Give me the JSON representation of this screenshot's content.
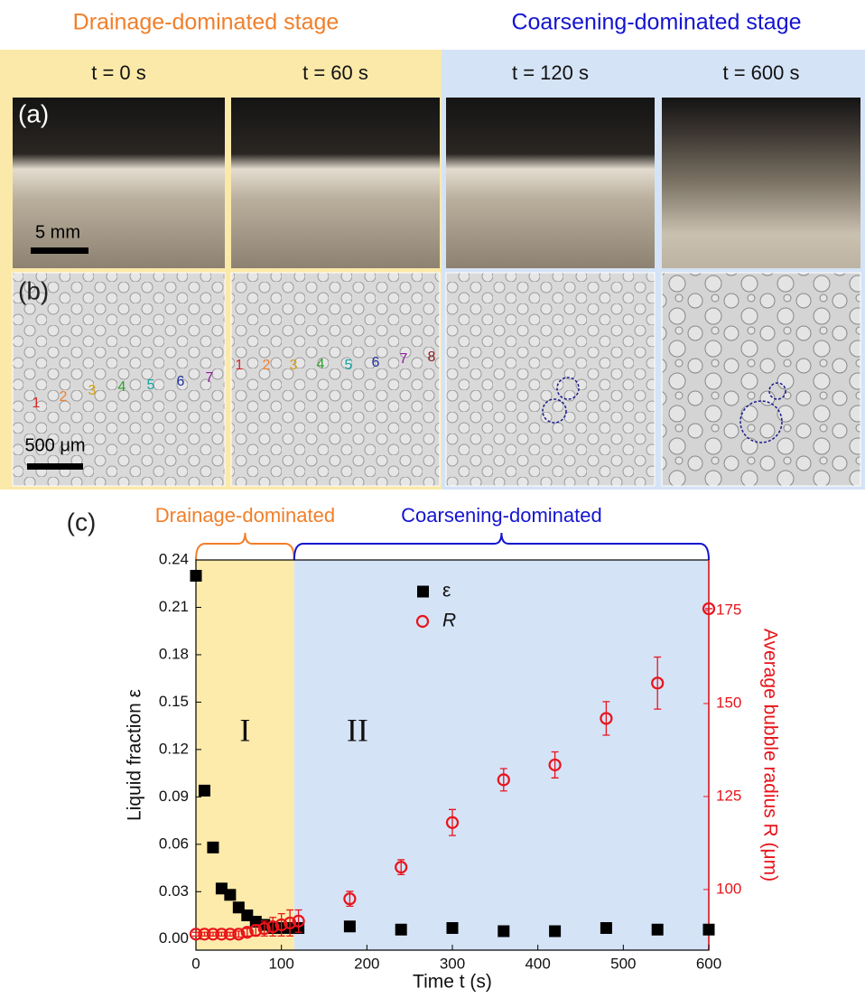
{
  "headers": {
    "drainage": "Drainage-dominated stage",
    "coarsening": "Coarsening-dominated stage"
  },
  "times": [
    "t = 0 s",
    "t = 60 s",
    "t = 120 s",
    "t = 600 s"
  ],
  "panels": {
    "a": "(a)",
    "b": "(b)",
    "c": "(c)"
  },
  "scale_bars": {
    "a": "5 mm",
    "b": "500 μm"
  },
  "bubble_labels": [
    [
      {
        "text": "1",
        "color": "#d62728"
      },
      {
        "text": "2",
        "color": "#f07f2a"
      },
      {
        "text": "3",
        "color": "#d4a017"
      },
      {
        "text": "4",
        "color": "#2ca02c"
      },
      {
        "text": "5",
        "color": "#17a2a2"
      },
      {
        "text": "6",
        "color": "#1f2f9f"
      },
      {
        "text": "7",
        "color": "#8b1c9b"
      }
    ],
    [
      {
        "text": "1",
        "color": "#d62728"
      },
      {
        "text": "2",
        "color": "#f07f2a"
      },
      {
        "text": "3",
        "color": "#d4a017"
      },
      {
        "text": "4",
        "color": "#2ca02c"
      },
      {
        "text": "5",
        "color": "#17a2a2"
      },
      {
        "text": "6",
        "color": "#1f2f9f"
      },
      {
        "text": "7",
        "color": "#8b1c9b"
      },
      {
        "text": "8",
        "color": "#8b1a1a"
      }
    ]
  ],
  "chart_data": {
    "type": "scatter",
    "xlabel": "Time t (s)",
    "ylabel": "Liquid fraction ε",
    "y2label": "Average bubble radius R (μm)",
    "xlim": [
      0,
      600
    ],
    "xticks": [
      0,
      100,
      200,
      300,
      400,
      500,
      600
    ],
    "ylim": [
      -0.007,
      0.24
    ],
    "yticks": [
      {
        "value": 0,
        "label": "0.00"
      },
      {
        "value": 0.03,
        "label": "0.03"
      },
      {
        "value": 0.06,
        "label": "0.06"
      },
      {
        "value": 0.09,
        "label": "0.09"
      },
      {
        "value": 0.12,
        "label": "0.12"
      },
      {
        "value": 0.15,
        "label": "0.15"
      },
      {
        "value": 0.18,
        "label": "0.18"
      },
      {
        "value": 0.21,
        "label": "0.21"
      },
      {
        "value": 0.24,
        "label": "0.24"
      }
    ],
    "y2lim": [
      83.7,
      188.6
    ],
    "y2ticks": [
      100,
      125,
      150,
      175
    ],
    "regions": [
      {
        "name": "I",
        "label": "Drainage-dominated",
        "start": 0,
        "end": 115,
        "color": "#fcebab",
        "brace_color": "#f07f2a"
      },
      {
        "name": "II",
        "label": "Coarsening-dominated",
        "start": 115,
        "end": 600,
        "color": "#d5e3f7",
        "brace_color": "#1414d0"
      }
    ],
    "x": [
      0,
      10,
      20,
      30,
      40,
      50,
      60,
      70,
      80,
      90,
      100,
      110,
      120,
      180,
      240,
      300,
      360,
      420,
      480,
      540,
      600
    ],
    "series": [
      {
        "name": "ε",
        "color": "#000000",
        "marker": "square",
        "values": [
          0.23,
          0.094,
          0.058,
          0.032,
          0.028,
          0.02,
          0.015,
          0.011,
          0.009,
          0.007,
          0.007,
          0.007,
          0.007,
          0.008,
          0.006,
          0.007,
          0.005,
          0.005,
          0.007,
          0.006,
          0.006
        ]
      },
      {
        "name": "R",
        "color": "#e8141b",
        "marker": "circle",
        "axis": "y2",
        "values": [
          88,
          88,
          88,
          88,
          88,
          88,
          88.5,
          89,
          89.5,
          90,
          90.5,
          91,
          91.5,
          97.5,
          106,
          118,
          129.5,
          133.5,
          146,
          155.5,
          175.5
        ],
        "errors": [
          0.5,
          0.5,
          0.5,
          0.5,
          0.5,
          0.8,
          1,
          1.5,
          2,
          2.5,
          3,
          3.5,
          3,
          2,
          2,
          3.5,
          3,
          3.5,
          4.5,
          7,
          0
        ]
      }
    ]
  }
}
